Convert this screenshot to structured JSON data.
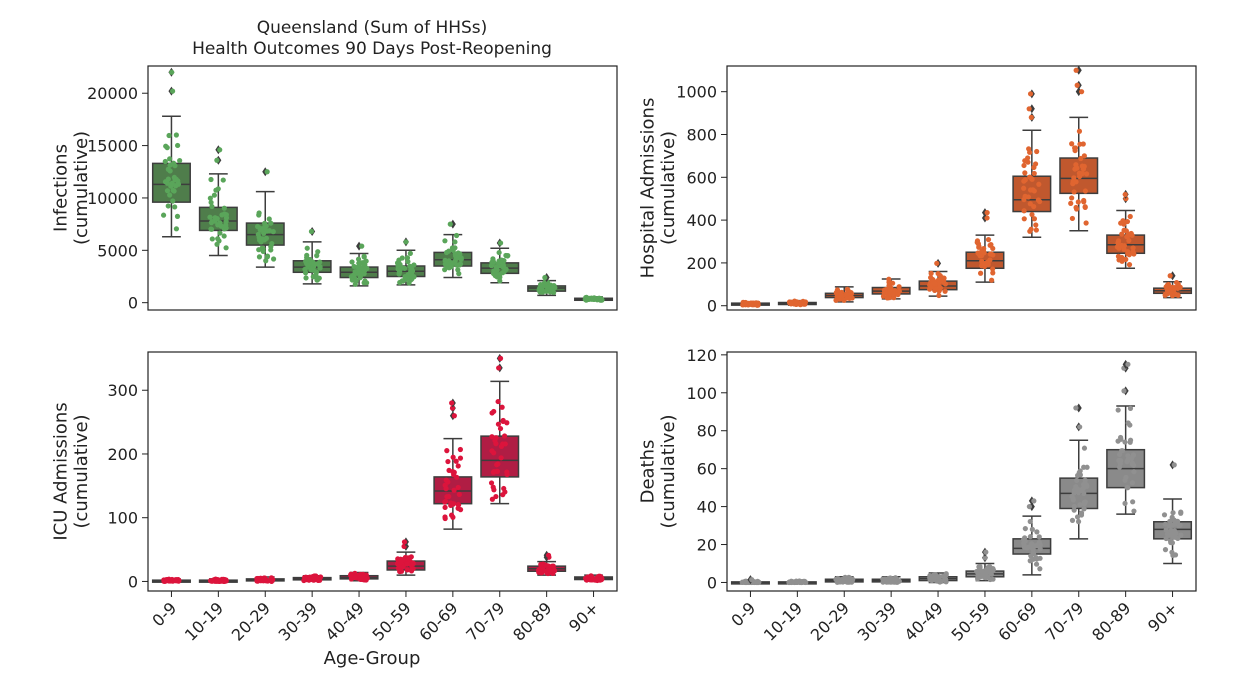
{
  "figure": {
    "title_line1": "Queensland (Sum of HHSs)",
    "title_line2": "Health Outcomes 90 Days Post-Reopening",
    "xlabel": "Age-Group"
  },
  "chart_data": [
    {
      "type": "box",
      "ylabel": [
        "Infections",
        "(cumulative)"
      ],
      "categories": [
        "0-9",
        "10-19",
        "20-29",
        "30-39",
        "40-49",
        "50-59",
        "60-69",
        "70-79",
        "80-89",
        "90+"
      ],
      "ylim": [
        -700,
        22600
      ],
      "yticks": [
        0,
        5000,
        10000,
        15000,
        20000
      ],
      "show_xticklabels": false,
      "color": "#4f7d4b",
      "point_color": "#5aa55a",
      "boxes": [
        {
          "q1": 9600,
          "median": 11300,
          "q3": 13300,
          "whislo": 6300,
          "whishi": 17800,
          "fliers": [
            20200,
            22000
          ]
        },
        {
          "q1": 6900,
          "median": 7800,
          "q3": 9100,
          "whislo": 4500,
          "whishi": 12300,
          "fliers": [
            13600,
            14600
          ]
        },
        {
          "q1": 5500,
          "median": 6500,
          "q3": 7600,
          "whislo": 3400,
          "whishi": 10600,
          "fliers": [
            12500
          ]
        },
        {
          "q1": 2900,
          "median": 3400,
          "q3": 4000,
          "whislo": 1800,
          "whishi": 5800,
          "fliers": [
            6800
          ]
        },
        {
          "q1": 2400,
          "median": 2900,
          "q3": 3400,
          "whislo": 1600,
          "whishi": 4700,
          "fliers": [
            5400
          ]
        },
        {
          "q1": 2500,
          "median": 3000,
          "q3": 3500,
          "whislo": 1700,
          "whishi": 5000,
          "fliers": [
            5800
          ]
        },
        {
          "q1": 3500,
          "median": 4100,
          "q3": 4800,
          "whislo": 2400,
          "whishi": 6500,
          "fliers": [
            7500
          ]
        },
        {
          "q1": 2800,
          "median": 3300,
          "q3": 3800,
          "whislo": 1900,
          "whishi": 5200,
          "fliers": [
            5700
          ]
        },
        {
          "q1": 1100,
          "median": 1400,
          "q3": 1600,
          "whislo": 700,
          "whishi": 2100,
          "fliers": [
            2400
          ]
        },
        {
          "q1": 280,
          "median": 350,
          "q3": 420,
          "whislo": 200,
          "whishi": 550,
          "fliers": []
        }
      ]
    },
    {
      "type": "box",
      "ylabel": [
        "Hospital Admissions",
        "(cumulative)"
      ],
      "categories": [
        "0-9",
        "10-19",
        "20-29",
        "30-39",
        "40-49",
        "50-59",
        "60-69",
        "70-79",
        "80-89",
        "90+"
      ],
      "ylim": [
        -20,
        1120
      ],
      "yticks": [
        0,
        200,
        400,
        600,
        800,
        1000
      ],
      "show_xticklabels": false,
      "color": "#c0582e",
      "point_color": "#e06530",
      "boxes": [
        {
          "q1": 6,
          "median": 9,
          "q3": 12,
          "whislo": 2,
          "whishi": 18,
          "fliers": []
        },
        {
          "q1": 8,
          "median": 11,
          "q3": 15,
          "whislo": 3,
          "whishi": 24,
          "fliers": []
        },
        {
          "q1": 38,
          "median": 48,
          "q3": 58,
          "whislo": 18,
          "whishi": 88,
          "fliers": []
        },
        {
          "q1": 55,
          "median": 68,
          "q3": 85,
          "whislo": 32,
          "whishi": 125,
          "fliers": []
        },
        {
          "q1": 75,
          "median": 92,
          "q3": 115,
          "whislo": 45,
          "whishi": 160,
          "fliers": [
            198
          ]
        },
        {
          "q1": 175,
          "median": 210,
          "q3": 250,
          "whislo": 110,
          "whishi": 330,
          "fliers": [
            410,
            435
          ]
        },
        {
          "q1": 440,
          "median": 495,
          "q3": 605,
          "whislo": 320,
          "whishi": 820,
          "fliers": [
            880,
            920,
            990
          ]
        },
        {
          "q1": 525,
          "median": 595,
          "q3": 690,
          "whislo": 350,
          "whishi": 880,
          "fliers": [
            1000,
            1030,
            1100
          ]
        },
        {
          "q1": 245,
          "median": 285,
          "q3": 330,
          "whislo": 175,
          "whishi": 445,
          "fliers": [
            500,
            520
          ]
        },
        {
          "q1": 58,
          "median": 70,
          "q3": 82,
          "whislo": 38,
          "whishi": 112,
          "fliers": [
            140
          ]
        }
      ]
    },
    {
      "type": "box",
      "ylabel": [
        "ICU Admissions",
        "(cumulative)"
      ],
      "categories": [
        "0-9",
        "10-19",
        "20-29",
        "30-39",
        "40-49",
        "50-59",
        "60-69",
        "70-79",
        "80-89",
        "90+"
      ],
      "ylim": [
        -15,
        360
      ],
      "yticks": [
        0,
        100,
        200,
        300
      ],
      "show_xticklabels": true,
      "color": "#b01d44",
      "point_color": "#dc143c",
      "boxes": [
        {
          "q1": 0.5,
          "median": 1,
          "q3": 2,
          "whislo": 0,
          "whishi": 4,
          "fliers": []
        },
        {
          "q1": 0.5,
          "median": 1,
          "q3": 2,
          "whislo": 0,
          "whishi": 4,
          "fliers": []
        },
        {
          "q1": 1.5,
          "median": 2.5,
          "q3": 4,
          "whislo": 0,
          "whishi": 7,
          "fliers": []
        },
        {
          "q1": 2.5,
          "median": 4,
          "q3": 6,
          "whislo": 1,
          "whishi": 9,
          "fliers": []
        },
        {
          "q1": 4,
          "median": 6,
          "q3": 9,
          "whislo": 1,
          "whishi": 14,
          "fliers": []
        },
        {
          "q1": 18,
          "median": 24,
          "q3": 32,
          "whislo": 10,
          "whishi": 46,
          "fliers": [
            55,
            62
          ]
        },
        {
          "q1": 122,
          "median": 142,
          "q3": 164,
          "whislo": 82,
          "whishi": 224,
          "fliers": [
            260,
            272,
            280
          ]
        },
        {
          "q1": 164,
          "median": 190,
          "q3": 228,
          "whislo": 122,
          "whishi": 314,
          "fliers": [
            335,
            350
          ]
        },
        {
          "q1": 16,
          "median": 20,
          "q3": 24,
          "whislo": 10,
          "whishi": 31,
          "fliers": [
            38,
            41
          ]
        },
        {
          "q1": 3,
          "median": 5,
          "q3": 7,
          "whislo": 1,
          "whishi": 10,
          "fliers": []
        }
      ]
    },
    {
      "type": "box",
      "ylabel": [
        "Deaths",
        "(cumulative)"
      ],
      "categories": [
        "0-9",
        "10-19",
        "20-29",
        "30-39",
        "40-49",
        "50-59",
        "60-69",
        "70-79",
        "80-89",
        "90+"
      ],
      "ylim": [
        -4.5,
        121.5
      ],
      "yticks": [
        0,
        20,
        40,
        60,
        80,
        100,
        120
      ],
      "show_xticklabels": true,
      "color": "#8a8a8a",
      "point_color": "#909090",
      "boxes": [
        {
          "q1": 0,
          "median": 0,
          "q3": 0.3,
          "whislo": 0,
          "whishi": 1,
          "fliers": [
            1.5
          ]
        },
        {
          "q1": 0,
          "median": 0,
          "q3": 0.3,
          "whislo": 0,
          "whishi": 1,
          "fliers": []
        },
        {
          "q1": 0.3,
          "median": 1,
          "q3": 1.7,
          "whislo": 0,
          "whishi": 3,
          "fliers": []
        },
        {
          "q1": 0.3,
          "median": 1,
          "q3": 1.7,
          "whislo": 0,
          "whishi": 3,
          "fliers": []
        },
        {
          "q1": 1,
          "median": 2,
          "q3": 3,
          "whislo": 0,
          "whishi": 5,
          "fliers": []
        },
        {
          "q1": 3,
          "median": 4.5,
          "q3": 6,
          "whislo": 1,
          "whishi": 10,
          "fliers": [
            13,
            16
          ]
        },
        {
          "q1": 15,
          "median": 18,
          "q3": 23,
          "whislo": 4,
          "whishi": 35,
          "fliers": [
            40,
            43
          ]
        },
        {
          "q1": 39,
          "median": 47,
          "q3": 55,
          "whislo": 23,
          "whishi": 75,
          "fliers": [
            82,
            92
          ]
        },
        {
          "q1": 50,
          "median": 60,
          "q3": 70,
          "whislo": 36,
          "whishi": 93,
          "fliers": [
            101,
            113,
            115
          ]
        },
        {
          "q1": 23,
          "median": 28,
          "q3": 32,
          "whislo": 10,
          "whishi": 44,
          "fliers": [
            62
          ]
        }
      ]
    }
  ]
}
